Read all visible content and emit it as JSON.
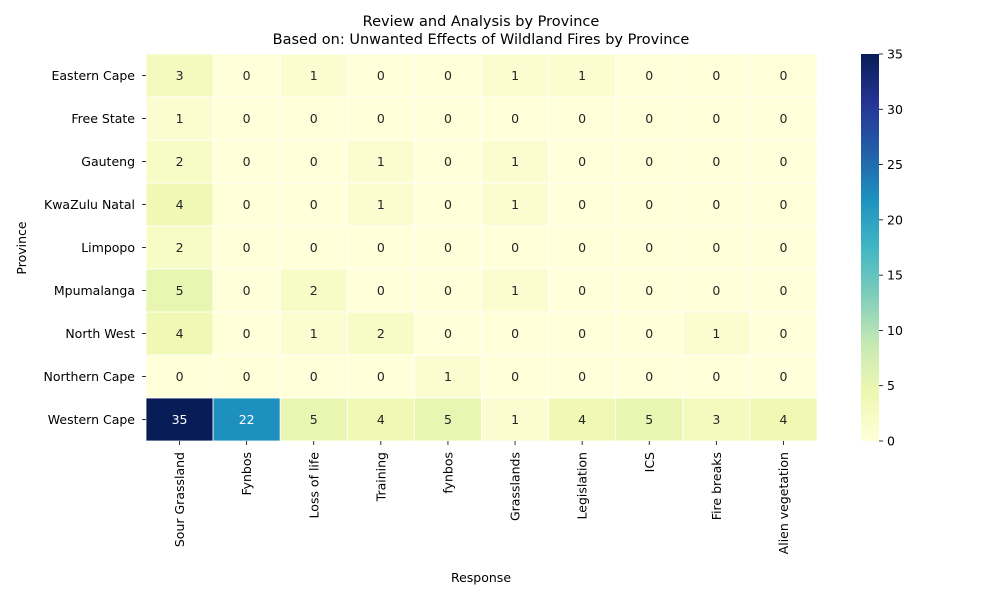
{
  "chart_data": {
    "type": "heatmap",
    "title": "Review and Analysis by Province",
    "subtitle": "Based on: Unwanted Effects of Wildland Fires by Province",
    "xlabel": "Response",
    "ylabel": "Province",
    "rows": [
      "Eastern Cape",
      "Free State",
      "Gauteng",
      "KwaZulu Natal",
      "Limpopo",
      "Mpumalanga",
      "North West",
      "Northern Cape",
      "Western Cape"
    ],
    "columns": [
      "Sour Grassland",
      "Fynbos",
      "Loss of life",
      "Training",
      "fynbos",
      "Grasslands",
      "Legislation",
      "ICS",
      "Fire breaks",
      "Alien vegetation"
    ],
    "values": [
      [
        3,
        0,
        1,
        0,
        0,
        1,
        1,
        0,
        0,
        0
      ],
      [
        1,
        0,
        0,
        0,
        0,
        0,
        0,
        0,
        0,
        0
      ],
      [
        2,
        0,
        0,
        1,
        0,
        1,
        0,
        0,
        0,
        0
      ],
      [
        4,
        0,
        0,
        1,
        0,
        1,
        0,
        0,
        0,
        0
      ],
      [
        2,
        0,
        0,
        0,
        0,
        0,
        0,
        0,
        0,
        0
      ],
      [
        5,
        0,
        2,
        0,
        0,
        1,
        0,
        0,
        0,
        0
      ],
      [
        4,
        0,
        1,
        2,
        0,
        0,
        0,
        0,
        1,
        0
      ],
      [
        0,
        0,
        0,
        0,
        1,
        0,
        0,
        0,
        0,
        0
      ],
      [
        35,
        22,
        5,
        4,
        5,
        1,
        4,
        5,
        3,
        4
      ]
    ],
    "colorscale": "YlGnBu",
    "vmin": 0,
    "vmax": 35,
    "colorbar_ticks": [
      0,
      5,
      10,
      15,
      20,
      25,
      30,
      35
    ],
    "annotated": true,
    "grid": false
  }
}
